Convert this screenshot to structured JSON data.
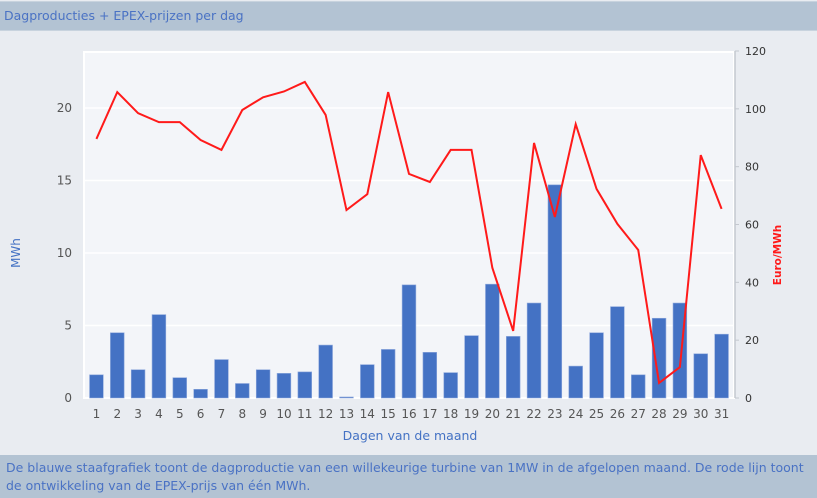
{
  "header": {
    "title": "Dagproducties + EPEX-prijzen per dag"
  },
  "footer": {
    "caption": "De blauwe staafgrafiek toont de dagproductie van een willekeurige turbine van 1MW in de afgelopen maand. De rode lijn toont de ontwikkeling van de EPEX-prijs van één MWh."
  },
  "colors": {
    "bar": "#4472c4",
    "line": "#ff1a1a",
    "left_axis_label": "#4472c4",
    "right_axis_label": "#ff1a1a",
    "header_bg": "#b3c3d3",
    "plot_bg": "#f3f5f9",
    "page_bg": "#e9ecf1"
  },
  "chart_data": {
    "type": "bar",
    "title": "Dagproducties + EPEX-prijzen per dag",
    "xlabel": "Dagen van de maand",
    "ylabel": "MWh",
    "y2label": "Euro/MWh",
    "categories": [
      "1",
      "2",
      "3",
      "4",
      "5",
      "6",
      "7",
      "8",
      "9",
      "10",
      "11",
      "12",
      "13",
      "14",
      "15",
      "16",
      "17",
      "18",
      "19",
      "20",
      "21",
      "22",
      "23",
      "24",
      "25",
      "26",
      "27",
      "28",
      "29",
      "30",
      "31"
    ],
    "ylim": [
      0,
      24
    ],
    "y2lim": [
      0,
      120
    ],
    "yticks": [
      0,
      5,
      10,
      15,
      20
    ],
    "y2ticks": [
      0,
      20,
      40,
      60,
      80,
      100,
      120
    ],
    "grid": true,
    "legend": "none",
    "series": [
      {
        "name": "Dagproductie",
        "type": "bar",
        "axis": "left",
        "unit": "MWh",
        "values": [
          1.6,
          4.5,
          1.95,
          5.75,
          1.4,
          0.6,
          2.65,
          1.0,
          1.95,
          1.7,
          1.8,
          3.65,
          0.05,
          2.3,
          3.35,
          7.8,
          3.15,
          1.75,
          4.3,
          7.85,
          4.25,
          6.55,
          14.7,
          2.2,
          4.5,
          6.3,
          1.6,
          5.5,
          6.55,
          3.05,
          4.4
        ]
      },
      {
        "name": "EPEX-prijs",
        "type": "line",
        "axis": "right",
        "unit": "Euro/MWh",
        "values": [
          89.6,
          105.8,
          98.5,
          95.4,
          95.4,
          89.2,
          85.8,
          99.6,
          104,
          106,
          109.3,
          97.9,
          65,
          70.5,
          105.8,
          77.5,
          74.7,
          85.8,
          85.8,
          45,
          23.2,
          88.2,
          62.6,
          94.7,
          72.3,
          60.2,
          51.2,
          5.2,
          10.7,
          84,
          65.4
        ]
      }
    ]
  }
}
